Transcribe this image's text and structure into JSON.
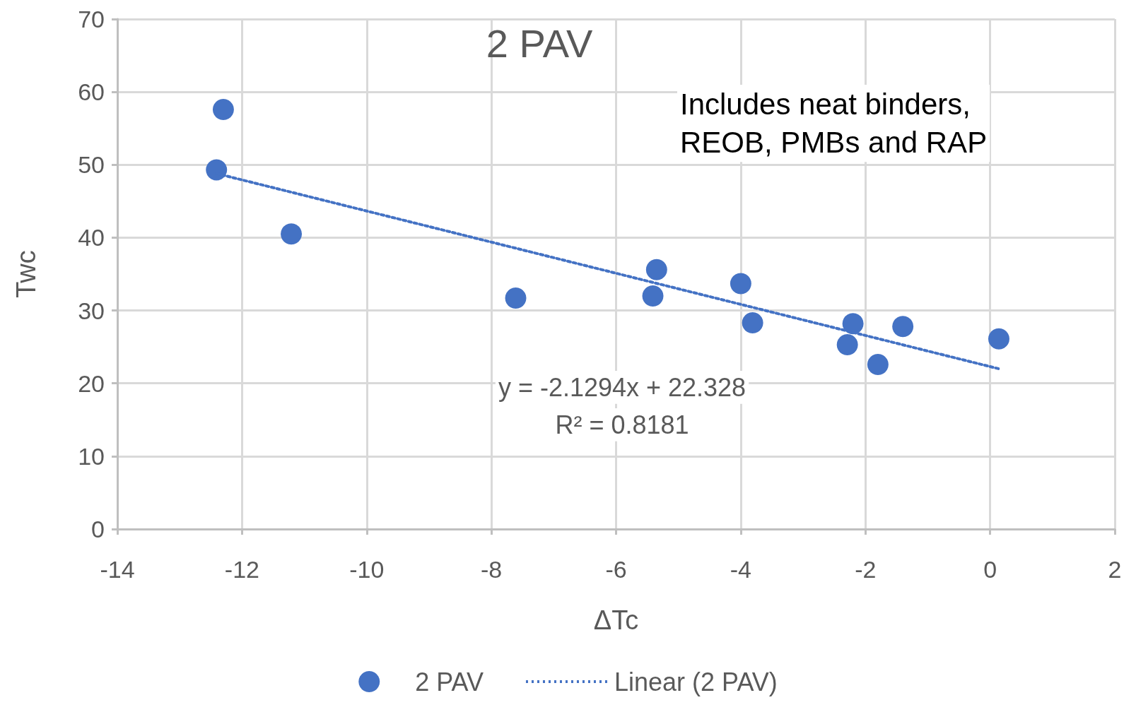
{
  "chart_data": {
    "type": "scatter",
    "title": "2 PAV",
    "xlabel": "ΔTc",
    "ylabel": "Twc",
    "annotations": [
      "Includes neat binders,\nREOB, PMBs and RAP",
      "y = -2.1294x + 22.328",
      "R² = 0.8181"
    ],
    "xlim": [
      -14,
      2
    ],
    "xticks": [
      -14,
      -12,
      -10,
      -8,
      -6,
      -4,
      -2,
      0,
      2
    ],
    "ylim": [
      0,
      70
    ],
    "yticks": [
      0,
      10,
      20,
      30,
      40,
      50,
      60,
      70
    ],
    "grid": true,
    "legend": "bottom",
    "series": [
      {
        "name": "2 PAV",
        "marker": "circle",
        "color": "#4472c4",
        "x": [
          -12.3,
          -12.41,
          -11.21,
          -7.61,
          -5.35,
          -5.41,
          -4.0,
          -3.81,
          -2.2,
          -2.29,
          -1.8,
          -1.4,
          0.14
        ],
        "values": [
          57.6,
          49.3,
          40.5,
          31.7,
          35.6,
          32.0,
          33.7,
          28.3,
          28.2,
          25.3,
          22.6,
          27.8,
          26.1
        ]
      },
      {
        "name": "Linear (2 PAV)",
        "type": "line",
        "marker": "none",
        "line_style": "dotted",
        "color": "#4472c4",
        "x": [
          -12.41,
          0.14
        ],
        "values": [
          48.8,
          22.0
        ]
      }
    ]
  }
}
